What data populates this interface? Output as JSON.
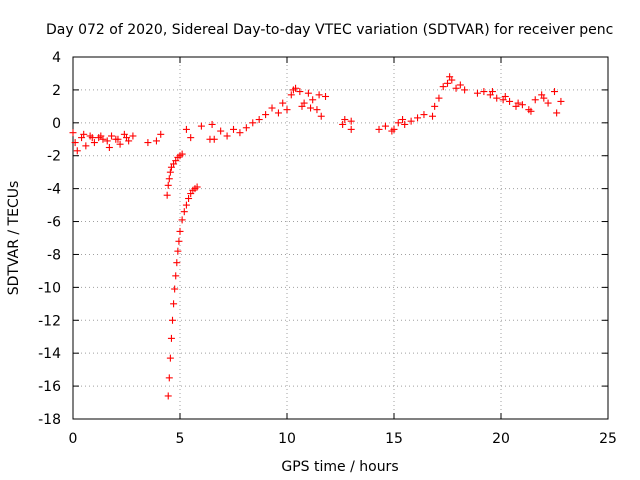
{
  "chart_data": {
    "type": "scatter",
    "title": "Day 072 of 2020, Sidereal Day-to-day VTEC variation (SDTVAR) for receiver penc",
    "xlabel": "GPS time / hours",
    "ylabel": "SDTVAR / TECUs",
    "xlim": [
      0,
      25
    ],
    "ylim": [
      -18,
      4
    ],
    "xticks": [
      "0",
      "5",
      "10",
      "15",
      "20",
      "25"
    ],
    "yticks": [
      "4",
      "2",
      "0",
      "-2",
      "-4",
      "-6",
      "-8",
      "-10",
      "-12",
      "-14",
      "-16",
      "-18"
    ],
    "grid": true,
    "marker": "+",
    "color": "#ff0000",
    "series": [
      {
        "name": "SDTVAR",
        "x": [
          0.0,
          0.2,
          0.4,
          0.6,
          0.8,
          1.0,
          1.2,
          1.4,
          1.6,
          1.8,
          2.0,
          2.2,
          2.4,
          2.6,
          2.8,
          0.1,
          0.5,
          0.9,
          1.3,
          1.7,
          2.1,
          2.5,
          3.5,
          3.9,
          4.1,
          5.3,
          5.5,
          6.0,
          6.4,
          6.5,
          4.4,
          4.45,
          4.5,
          4.55,
          4.6,
          4.7,
          4.8,
          4.9,
          5.0,
          5.1,
          4.45,
          4.5,
          4.55,
          4.6,
          4.65,
          4.7,
          4.75,
          4.8,
          4.85,
          4.9,
          4.95,
          5.0,
          5.1,
          5.2,
          5.3,
          5.4,
          5.5,
          5.6,
          5.7,
          5.8,
          6.6,
          6.9,
          7.2,
          7.5,
          7.8,
          8.1,
          8.4,
          8.7,
          9.0,
          9.3,
          9.6,
          9.8,
          10.0,
          10.2,
          10.4,
          10.6,
          10.8,
          11.0,
          11.2,
          11.4,
          11.6,
          11.8,
          10.3,
          10.7,
          11.1,
          11.5,
          12.6,
          12.7,
          13.0,
          13.0,
          14.3,
          14.6,
          14.9,
          15.2,
          15.5,
          15.8,
          16.1,
          16.4,
          15.0,
          15.4,
          16.8,
          16.9,
          17.1,
          17.3,
          17.5,
          17.7,
          17.9,
          18.1,
          18.3,
          17.6,
          18.9,
          19.2,
          19.5,
          19.8,
          20.1,
          20.4,
          20.7,
          21.0,
          21.3,
          21.6,
          21.9,
          22.2,
          22.5,
          22.8,
          19.6,
          20.2,
          20.8,
          21.4,
          22.0,
          22.6
        ],
        "y": [
          -0.6,
          -1.7,
          -0.9,
          -1.4,
          -0.8,
          -1.2,
          -0.9,
          -1.0,
          -1.1,
          -0.8,
          -1.0,
          -1.3,
          -0.7,
          -1.1,
          -0.8,
          -1.2,
          -0.7,
          -0.9,
          -0.8,
          -1.5,
          -1.0,
          -0.9,
          -1.2,
          -1.1,
          -0.7,
          -0.4,
          -0.9,
          -0.2,
          -1.0,
          -0.1,
          -4.4,
          -3.8,
          -3.4,
          -3.0,
          -2.7,
          -2.5,
          -2.3,
          -2.1,
          -2.0,
          -1.9,
          -16.6,
          -15.5,
          -14.3,
          -13.1,
          -12.0,
          -11.0,
          -10.1,
          -9.3,
          -8.5,
          -7.8,
          -7.2,
          -6.6,
          -5.9,
          -5.4,
          -5.0,
          -4.6,
          -4.3,
          -4.1,
          -4.0,
          -3.9,
          -1.0,
          -0.5,
          -0.8,
          -0.4,
          -0.6,
          -0.3,
          0.0,
          0.2,
          0.5,
          0.9,
          0.6,
          1.2,
          0.8,
          1.7,
          2.1,
          1.9,
          1.2,
          1.8,
          1.4,
          0.8,
          0.4,
          1.6,
          2.0,
          1.0,
          0.9,
          1.7,
          -0.1,
          0.2,
          -0.4,
          0.1,
          -0.4,
          -0.2,
          -0.5,
          0.0,
          -0.1,
          0.1,
          0.3,
          0.5,
          -0.4,
          0.2,
          0.4,
          1.0,
          1.5,
          2.2,
          2.4,
          2.6,
          2.1,
          2.3,
          2.0,
          2.8,
          1.8,
          1.9,
          1.7,
          1.5,
          1.4,
          1.3,
          1.0,
          1.1,
          0.8,
          1.4,
          1.7,
          1.2,
          1.9,
          1.3,
          1.9,
          1.6,
          1.2,
          0.7,
          1.5,
          0.6
        ]
      }
    ]
  }
}
